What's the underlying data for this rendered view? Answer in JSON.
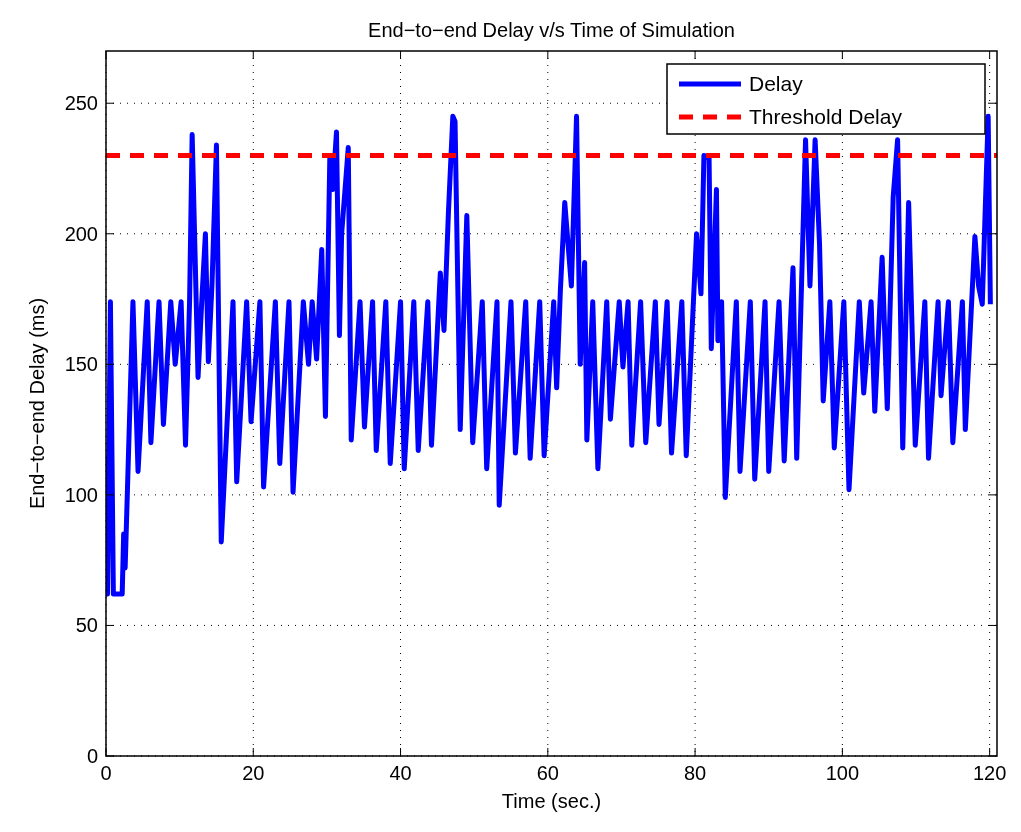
{
  "chart_data": {
    "type": "line",
    "title": "End−to−end Delay v/s Time of Simulation",
    "xlabel": "Time (sec.)",
    "ylabel": "End−to−end Delay (ms)",
    "xlim": [
      0,
      121
    ],
    "ylim": [
      0,
      270
    ],
    "xticks": [
      0,
      20,
      40,
      60,
      80,
      100,
      120
    ],
    "yticks": [
      0,
      50,
      100,
      150,
      200,
      250
    ],
    "grid": true,
    "legend": "top right",
    "series": [
      {
        "name": "Delay",
        "color": "#0000ff",
        "line_style": "solid",
        "x": [
          0,
          0.2,
          0.6,
          1.0,
          2.2,
          2.4,
          2.6,
          3.66,
          4.35,
          5.6,
          6.1,
          7.2,
          7.8,
          8.8,
          9.4,
          10.2,
          10.8,
          11.35,
          11.7,
          12.5,
          13.0,
          13.5,
          13.9,
          14.4,
          15.0,
          15.65,
          17.25,
          17.75,
          19.1,
          19.7,
          20.9,
          21.4,
          23.0,
          23.6,
          24.85,
          25.4,
          26.8,
          27.5,
          28.0,
          28.6,
          29.3,
          29.8,
          30.4,
          30.8,
          31.3,
          31.7,
          32.0,
          32.9,
          33.3,
          34.5,
          35.1,
          36.2,
          36.7,
          38.0,
          38.6,
          40.0,
          40.5,
          41.8,
          42.4,
          43.7,
          44.2,
          45.4,
          45.9,
          46.5,
          47.1,
          47.4,
          48.1,
          49.0,
          49.8,
          51.1,
          51.7,
          53.1,
          53.4,
          55.0,
          55.6,
          57.0,
          57.6,
          58.9,
          59.5,
          60.8,
          61.2,
          61.7,
          62.3,
          63.2,
          63.9,
          64.4,
          65.0,
          65.3,
          66.1,
          66.8,
          68.0,
          68.5,
          69.7,
          70.2,
          70.9,
          71.4,
          72.6,
          73.3,
          74.6,
          75.1,
          76.2,
          76.8,
          78.2,
          78.8,
          80.2,
          80.8,
          81.2,
          81.9,
          82.2,
          82.9,
          83.1,
          83.6,
          84.1,
          85.6,
          86.1,
          87.5,
          88.1,
          89.5,
          90.0,
          91.4,
          92.1,
          93.3,
          93.8,
          95.0,
          95.6,
          96.3,
          96.9,
          97.4,
          98.3,
          98.9,
          100.2,
          100.9,
          102.3,
          102.9,
          103.9,
          104.4,
          105.4,
          106.1,
          106.9,
          107.5,
          108.2,
          109.0,
          109.9,
          111.2,
          111.7,
          113.0,
          113.4,
          114.4,
          115.0,
          116.3,
          116.7,
          118.0,
          118.5,
          119.0,
          119.8,
          120.1
        ],
        "values": [
          115,
          62,
          174,
          62,
          62,
          85,
          72,
          174,
          109,
          174,
          120,
          174,
          127,
          174,
          150,
          174,
          119,
          174,
          238,
          145,
          174,
          200,
          151,
          181,
          234,
          82,
          174,
          105,
          174,
          128,
          174,
          103,
          174,
          112,
          174,
          101,
          174,
          150,
          174,
          152,
          194,
          130,
          230,
          217,
          239,
          161,
          200,
          233,
          121,
          174,
          126,
          174,
          117,
          174,
          112,
          174,
          110,
          174,
          117,
          174,
          119,
          185,
          163,
          208,
          245,
          243,
          125,
          207,
          120,
          174,
          110,
          174,
          96,
          174,
          116,
          174,
          114,
          174,
          115,
          174,
          141,
          178,
          212,
          180,
          245,
          150,
          189,
          121,
          174,
          110,
          174,
          129,
          174,
          149,
          174,
          119,
          174,
          120,
          174,
          127,
          174,
          116,
          174,
          115,
          200,
          177,
          230,
          229,
          156,
          217,
          159,
          174,
          99,
          174,
          109,
          174,
          106,
          174,
          109,
          174,
          113,
          187,
          114,
          236,
          180,
          236,
          196,
          136,
          174,
          118,
          174,
          102,
          174,
          139,
          174,
          132,
          191,
          133,
          214,
          236,
          118,
          212,
          119,
          174,
          114,
          174,
          138,
          174,
          120,
          174,
          125,
          199,
          180,
          173,
          245,
          173
        ]
      },
      {
        "name": "Threshold Delay",
        "color": "#ff0000",
        "line_style": "dashed",
        "x": [
          0,
          121
        ],
        "values": [
          230,
          230
        ]
      }
    ]
  }
}
